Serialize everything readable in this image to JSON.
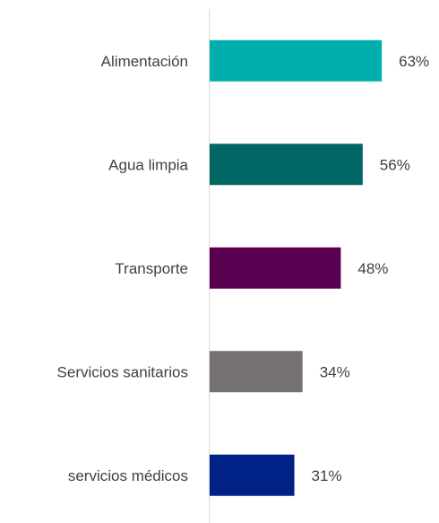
{
  "chart_data": {
    "type": "bar",
    "orientation": "horizontal",
    "categories": [
      "Alimentación",
      "Agua limpia",
      "Transporte",
      "Servicios sanitarios",
      "servicios médicos"
    ],
    "values": [
      63,
      56,
      48,
      34,
      31
    ],
    "value_labels": [
      "63%",
      "56%",
      "48%",
      "34%",
      "31%"
    ],
    "colors": [
      "#00aeae",
      "#006664",
      "#5a0050",
      "#767171",
      "#002185"
    ]
  }
}
